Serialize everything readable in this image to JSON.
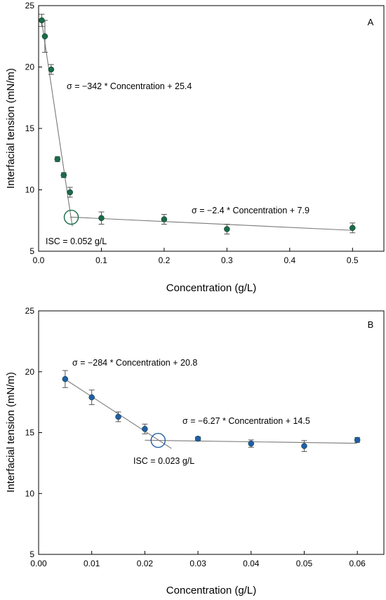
{
  "chart_data": [
    {
      "panel_label": "A",
      "type": "scatter",
      "xlabel": "Concentration (g/L)",
      "ylabel": "Interfacial tension (mN/m)",
      "xlim": [
        0,
        0.55
      ],
      "ylim": [
        5,
        25
      ],
      "xticks": [
        "0.0",
        "0.1",
        "0.2",
        "0.3",
        "0.4",
        "0.5"
      ],
      "yticks": [
        "5",
        "10",
        "15",
        "20",
        "25"
      ],
      "marker_color": "#1a6b48",
      "points": [
        {
          "x": 0.005,
          "y": 23.8,
          "err": 0.5
        },
        {
          "x": 0.01,
          "y": 22.5,
          "err": 1.3
        },
        {
          "x": 0.02,
          "y": 19.8,
          "err": 0.4
        },
        {
          "x": 0.03,
          "y": 12.5,
          "err": 0.2
        },
        {
          "x": 0.04,
          "y": 11.2,
          "err": 0.2
        },
        {
          "x": 0.05,
          "y": 9.8,
          "err": 0.4
        },
        {
          "x": 0.1,
          "y": 7.7,
          "err": 0.5
        },
        {
          "x": 0.2,
          "y": 7.6,
          "err": 0.4
        },
        {
          "x": 0.3,
          "y": 6.8,
          "err": 0.4
        },
        {
          "x": 0.5,
          "y": 6.9,
          "err": 0.4
        }
      ],
      "fits": [
        {
          "label": "σ = −342 * Concentration + 25.4",
          "slope": -342,
          "intercept": 25.4,
          "x_range": [
            0.005,
            0.0537
          ]
        },
        {
          "label": "σ = −2.4 * Concentration + 7.9",
          "slope": -2.4,
          "intercept": 7.9,
          "x_range": [
            0.05,
            0.5
          ]
        }
      ],
      "isc": {
        "label": "ISC = 0.052 g/L",
        "x": 0.052,
        "y": 7.77
      }
    },
    {
      "panel_label": "B",
      "type": "scatter",
      "xlabel": "Concentration (g/L)",
      "ylabel": "Interfacial tension (mN/m)",
      "xlim": [
        0,
        0.065
      ],
      "ylim": [
        5,
        25
      ],
      "xticks": [
        "0.00",
        "0.01",
        "0.02",
        "0.03",
        "0.04",
        "0.05",
        "0.06"
      ],
      "yticks": [
        "5",
        "10",
        "15",
        "20",
        "25"
      ],
      "marker_color": "#1f5fa6",
      "points": [
        {
          "x": 0.005,
          "y": 19.4,
          "err": 0.7
        },
        {
          "x": 0.01,
          "y": 17.9,
          "err": 0.6
        },
        {
          "x": 0.015,
          "y": 16.3,
          "err": 0.4
        },
        {
          "x": 0.02,
          "y": 15.3,
          "err": 0.4
        },
        {
          "x": 0.03,
          "y": 14.5,
          "err": 0.15
        },
        {
          "x": 0.04,
          "y": 14.1,
          "err": 0.3
        },
        {
          "x": 0.05,
          "y": 13.9,
          "err": 0.45
        },
        {
          "x": 0.06,
          "y": 14.4,
          "err": 0.2
        }
      ],
      "fits": [
        {
          "label": "σ = −284 * Concentration + 20.8",
          "slope": -284,
          "intercept": 20.8,
          "x_range": [
            0.005,
            0.025
          ]
        },
        {
          "label": "σ = −6.27 * Concentration + 14.5",
          "slope": -6.27,
          "intercept": 14.5,
          "x_range": [
            0.02,
            0.06
          ]
        }
      ],
      "isc": {
        "label": "ISC = 0.023 g/L",
        "x": 0.0225,
        "y": 14.36
      }
    }
  ]
}
